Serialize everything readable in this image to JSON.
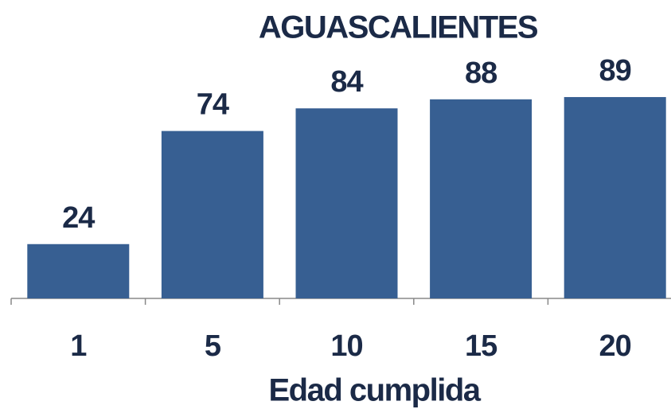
{
  "chart_data": {
    "type": "bar",
    "title": "AGUASCALIENTES",
    "x_label": "Edad cumplida",
    "categories": [
      "1",
      "5",
      "10",
      "15",
      "20"
    ],
    "values": [
      24,
      74,
      84,
      88,
      89
    ],
    "color": "#375f92"
  }
}
